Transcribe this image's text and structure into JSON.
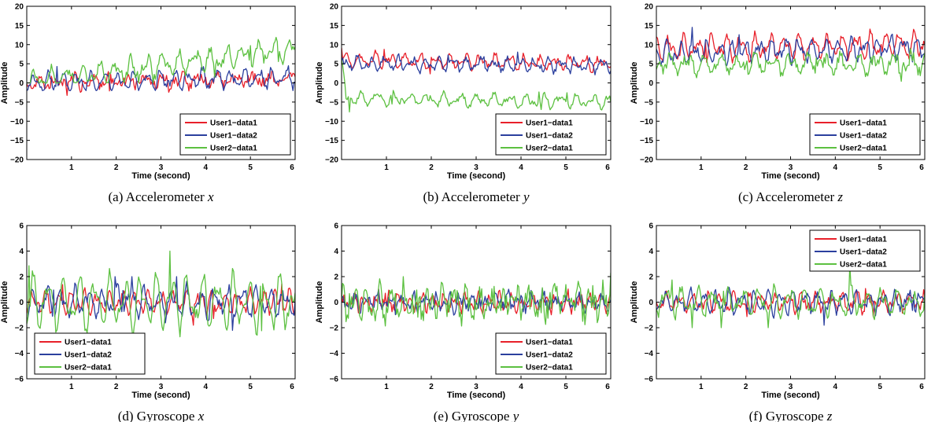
{
  "figure": {
    "colors": {
      "User1-data1": "#e8202a",
      "User1-data2": "#2b3f9e",
      "User2-data1": "#5cc040"
    },
    "legend_entries": [
      "User1−data1",
      "User1−data2",
      "User2−data1"
    ]
  },
  "chart_data": [
    {
      "id": "a",
      "type": "line",
      "caption_prefix": "(a) Accelerometer",
      "caption_var": "x",
      "xlabel": "Time (second)",
      "ylabel": "Amplitude",
      "xlim": [
        0,
        6
      ],
      "ylim": [
        -20,
        20
      ],
      "xticks": [
        1,
        2,
        3,
        4,
        5,
        6
      ],
      "yticks": [
        -20,
        -15,
        -10,
        -5,
        0,
        5,
        10,
        15,
        20
      ],
      "grid": false,
      "legend_position": "bottom-right",
      "series": [
        {
          "name": "User1−data1",
          "color": "#e8202a",
          "base": 0,
          "amp": 1.5,
          "freq": 2.5,
          "noise": 1.4,
          "min": -4,
          "max": 3,
          "x": [
            0,
            6
          ],
          "y": [
            0,
            1
          ]
        },
        {
          "name": "User1−data2",
          "color": "#2b3f9e",
          "base": 1.5,
          "amp": 2.6,
          "freq": 3.2,
          "noise": 0.9,
          "min": -2,
          "max": 5.5,
          "x": [
            0,
            6
          ],
          "y": [
            0,
            1.5
          ]
        },
        {
          "name": "User2−data1",
          "color": "#5cc040",
          "base": 9,
          "amp": 2.8,
          "freq": 2.8,
          "noise": 1.2,
          "min": 0,
          "max": 16.5,
          "x": [
            0,
            6
          ],
          "y": [
            0,
            9
          ]
        }
      ]
    },
    {
      "id": "b",
      "type": "line",
      "caption_prefix": "(b) Accelerometer",
      "caption_var": "y",
      "xlabel": "Time (second)",
      "ylabel": "Amplitude",
      "xlim": [
        0,
        6
      ],
      "ylim": [
        -20,
        20
      ],
      "xticks": [
        1,
        2,
        3,
        4,
        5,
        6
      ],
      "yticks": [
        -20,
        -15,
        -10,
        -5,
        0,
        5,
        10,
        15,
        20
      ],
      "grid": false,
      "legend_position": "bottom-right",
      "series": [
        {
          "name": "User1−data1",
          "color": "#e8202a",
          "base": 5.5,
          "amp": 1.8,
          "freq": 3.0,
          "noise": 0.8,
          "min": 1,
          "max": 9.5,
          "x": [
            0,
            6
          ],
          "y": [
            6,
            5
          ]
        },
        {
          "name": "User1−data2",
          "color": "#2b3f9e",
          "base": 4.8,
          "amp": 1.8,
          "freq": 3.3,
          "noise": 0.8,
          "min": 1,
          "max": 8.5,
          "x": [
            0,
            6
          ],
          "y": [
            5,
            4.5
          ]
        },
        {
          "name": "User2−data1",
          "color": "#5cc040",
          "base": -5,
          "amp": 1.7,
          "freq": 2.7,
          "noise": 0.7,
          "min": -9.5,
          "max": 6,
          "x": [
            0,
            0.1,
            6
          ],
          "y": [
            6,
            -4,
            -5
          ]
        }
      ]
    },
    {
      "id": "c",
      "type": "line",
      "caption_prefix": "(c) Accelerometer",
      "caption_var": "z",
      "xlabel": "Time (second)",
      "ylabel": "Amplitude",
      "xlim": [
        0,
        6
      ],
      "ylim": [
        -20,
        20
      ],
      "xticks": [
        1,
        2,
        3,
        4,
        5,
        6
      ],
      "yticks": [
        -20,
        -15,
        -10,
        -5,
        0,
        5,
        10,
        15,
        20
      ],
      "grid": false,
      "legend_position": "bottom-right",
      "series": [
        {
          "name": "User1−data1",
          "color": "#e8202a",
          "base": 9.5,
          "amp": 3.2,
          "freq": 3.1,
          "noise": 1.2,
          "min": 4,
          "max": 17,
          "x": [
            0,
            6
          ],
          "y": [
            9,
            10
          ]
        },
        {
          "name": "User1−data2",
          "color": "#2b3f9e",
          "base": 8.5,
          "amp": 3.0,
          "freq": 3.4,
          "noise": 1.1,
          "min": 3,
          "max": 14.5,
          "x": [
            0,
            6
          ],
          "y": [
            8,
            9
          ]
        },
        {
          "name": "User2−data1",
          "color": "#5cc040",
          "base": 5,
          "amp": 2.2,
          "freq": 2.6,
          "noise": 1.5,
          "min": -3,
          "max": 13.5,
          "x": [
            0,
            6
          ],
          "y": [
            5,
            5
          ]
        }
      ]
    },
    {
      "id": "d",
      "type": "line",
      "caption_prefix": "(d) Gyroscope",
      "caption_var": "x",
      "xlabel": "Time (second)",
      "ylabel": "Amplitude",
      "xlim": [
        0,
        6
      ],
      "ylim": [
        -6,
        6
      ],
      "xticks": [
        1,
        2,
        3,
        4,
        5,
        6
      ],
      "yticks": [
        -6,
        -4,
        -2,
        0,
        2,
        4,
        6
      ],
      "grid": false,
      "legend_position": "bottom-left",
      "series": [
        {
          "name": "User1−data1",
          "color": "#e8202a",
          "base": 0,
          "amp": 0.9,
          "freq": 3.5,
          "noise": 0.35,
          "min": -2,
          "max": 1.8,
          "x": [
            0,
            6
          ],
          "y": [
            0,
            0
          ]
        },
        {
          "name": "User1−data2",
          "color": "#2b3f9e",
          "base": 0,
          "amp": 1.2,
          "freq": 3.2,
          "noise": 0.4,
          "min": -2.2,
          "max": 2,
          "x": [
            0,
            6
          ],
          "y": [
            0,
            0
          ]
        },
        {
          "name": "User2−data1",
          "color": "#5cc040",
          "base": 0,
          "amp": 2.2,
          "freq": 2.9,
          "noise": 0.45,
          "min": -3.6,
          "max": 4,
          "x": [
            0,
            6
          ],
          "y": [
            0,
            0
          ]
        }
      ]
    },
    {
      "id": "e",
      "type": "line",
      "caption_prefix": "(e) Gyroscope",
      "caption_var": "y",
      "xlabel": "Time (second)",
      "ylabel": "Amplitude",
      "xlim": [
        0,
        6
      ],
      "ylim": [
        -6,
        6
      ],
      "xticks": [
        1,
        2,
        3,
        4,
        5,
        6
      ],
      "yticks": [
        -6,
        -4,
        -2,
        0,
        2,
        4,
        6
      ],
      "grid": false,
      "legend_position": "bottom-right",
      "series": [
        {
          "name": "User1−data1",
          "color": "#e8202a",
          "base": 0,
          "amp": 0.6,
          "freq": 4.0,
          "noise": 0.45,
          "min": -1.5,
          "max": 1.5,
          "x": [
            0,
            6
          ],
          "y": [
            0,
            0
          ]
        },
        {
          "name": "User1−data2",
          "color": "#2b3f9e",
          "base": 0,
          "amp": 0.6,
          "freq": 3.8,
          "noise": 0.45,
          "min": -1.5,
          "max": 1.5,
          "x": [
            0,
            6
          ],
          "y": [
            0,
            0
          ]
        },
        {
          "name": "User2−data1",
          "color": "#5cc040",
          "base": 0,
          "amp": 1.1,
          "freq": 3.6,
          "noise": 0.9,
          "min": -5.4,
          "max": 3.2,
          "x": [
            0,
            6
          ],
          "y": [
            0,
            0
          ]
        }
      ]
    },
    {
      "id": "f",
      "type": "line",
      "caption_prefix": "(f) Gyroscope",
      "caption_var": "z",
      "xlabel": "Time (second)",
      "ylabel": "Amplitude",
      "xlim": [
        0,
        6
      ],
      "ylim": [
        -6,
        6
      ],
      "xticks": [
        1,
        2,
        3,
        4,
        5,
        6
      ],
      "yticks": [
        -6,
        -4,
        -2,
        0,
        2,
        4,
        6
      ],
      "grid": false,
      "legend_position": "top-right",
      "series": [
        {
          "name": "User1−data1",
          "color": "#e8202a",
          "base": 0,
          "amp": 0.7,
          "freq": 3.3,
          "noise": 0.35,
          "min": -1.5,
          "max": 1.5,
          "x": [
            0,
            6
          ],
          "y": [
            0,
            0
          ]
        },
        {
          "name": "User1−data2",
          "color": "#2b3f9e",
          "base": 0,
          "amp": 0.9,
          "freq": 3.5,
          "noise": 0.35,
          "min": -1.8,
          "max": 2.8,
          "x": [
            0,
            6
          ],
          "y": [
            0,
            0
          ]
        },
        {
          "name": "User2−data1",
          "color": "#5cc040",
          "base": 0,
          "amp": 1.1,
          "freq": 2.9,
          "noise": 0.4,
          "min": -2.0,
          "max": 4.0,
          "x": [
            0,
            6
          ],
          "y": [
            0,
            0
          ]
        }
      ]
    }
  ]
}
